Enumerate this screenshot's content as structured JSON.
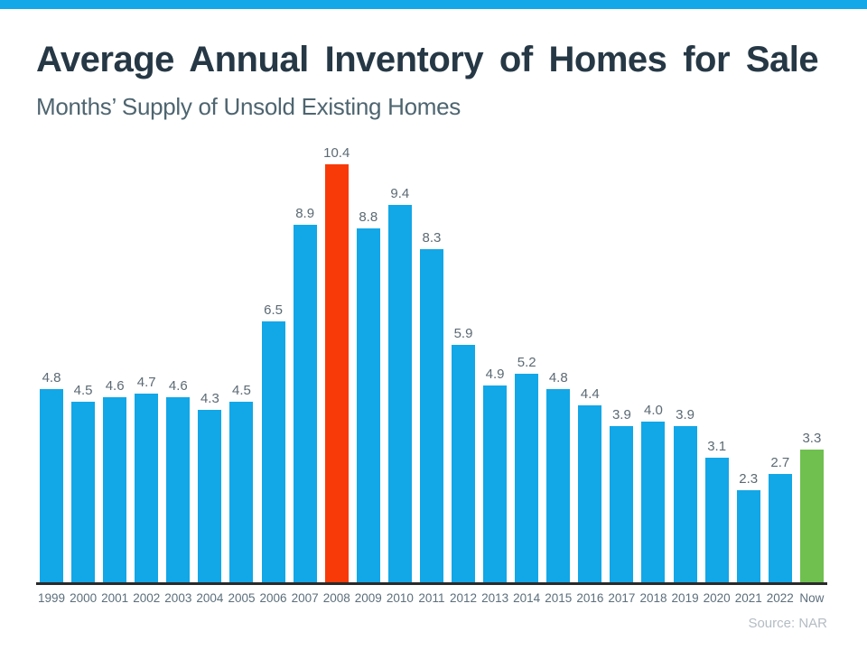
{
  "header": {
    "title": "Average Annual Inventory of Homes for Sale",
    "subtitle": "Months’ Supply of Unsold Existing Homes"
  },
  "footer": {
    "source": "Source: NAR"
  },
  "colors": {
    "accent_strip": "#14a8e8",
    "bar_default": "#12a7e7",
    "bar_highlight_2008": "#f83a08",
    "bar_highlight_now": "#6fc04f",
    "axis_line": "#2a2a2a",
    "value_label": "#5c6a74",
    "tick_label": "#5c6f7c",
    "title_text": "#263845",
    "subtitle_text": "#4e6570",
    "source_text": "#b4bcc3"
  },
  "chart_data": {
    "type": "bar",
    "title": "Average Annual Inventory of Homes for Sale",
    "subtitle": "Months’ Supply of Unsold Existing Homes",
    "xlabel": "",
    "ylabel": "",
    "ylim": [
      0,
      10.4
    ],
    "grid": false,
    "legend": false,
    "categories": [
      "1999",
      "2000",
      "2001",
      "2002",
      "2003",
      "2004",
      "2005",
      "2006",
      "2007",
      "2008",
      "2009",
      "2010",
      "2011",
      "2012",
      "2013",
      "2014",
      "2015",
      "2016",
      "2017",
      "2018",
      "2019",
      "2020",
      "2021",
      "2022",
      "Now"
    ],
    "values": [
      4.8,
      4.5,
      4.6,
      4.7,
      4.6,
      4.3,
      4.5,
      6.5,
      8.9,
      10.4,
      8.8,
      9.4,
      8.3,
      5.9,
      4.9,
      5.2,
      4.8,
      4.4,
      3.9,
      4.0,
      3.9,
      3.1,
      2.3,
      2.7,
      3.3
    ],
    "value_labels": [
      "4.8",
      "4.5",
      "4.6",
      "4.7",
      "4.6",
      "4.3",
      "4.5",
      "6.5",
      "8.9",
      "10.4",
      "8.8",
      "9.4",
      "8.3",
      "5.9",
      "4.9",
      "5.2",
      "4.8",
      "4.4",
      "3.9",
      "4.0",
      "3.9",
      "3.1",
      "2.3",
      "2.7",
      "3.3"
    ],
    "highlights": {
      "2008": "#f83a08",
      "Now": "#6fc04f"
    },
    "bar_color_default": "#12a7e7",
    "annotation_source": "Source: NAR"
  }
}
